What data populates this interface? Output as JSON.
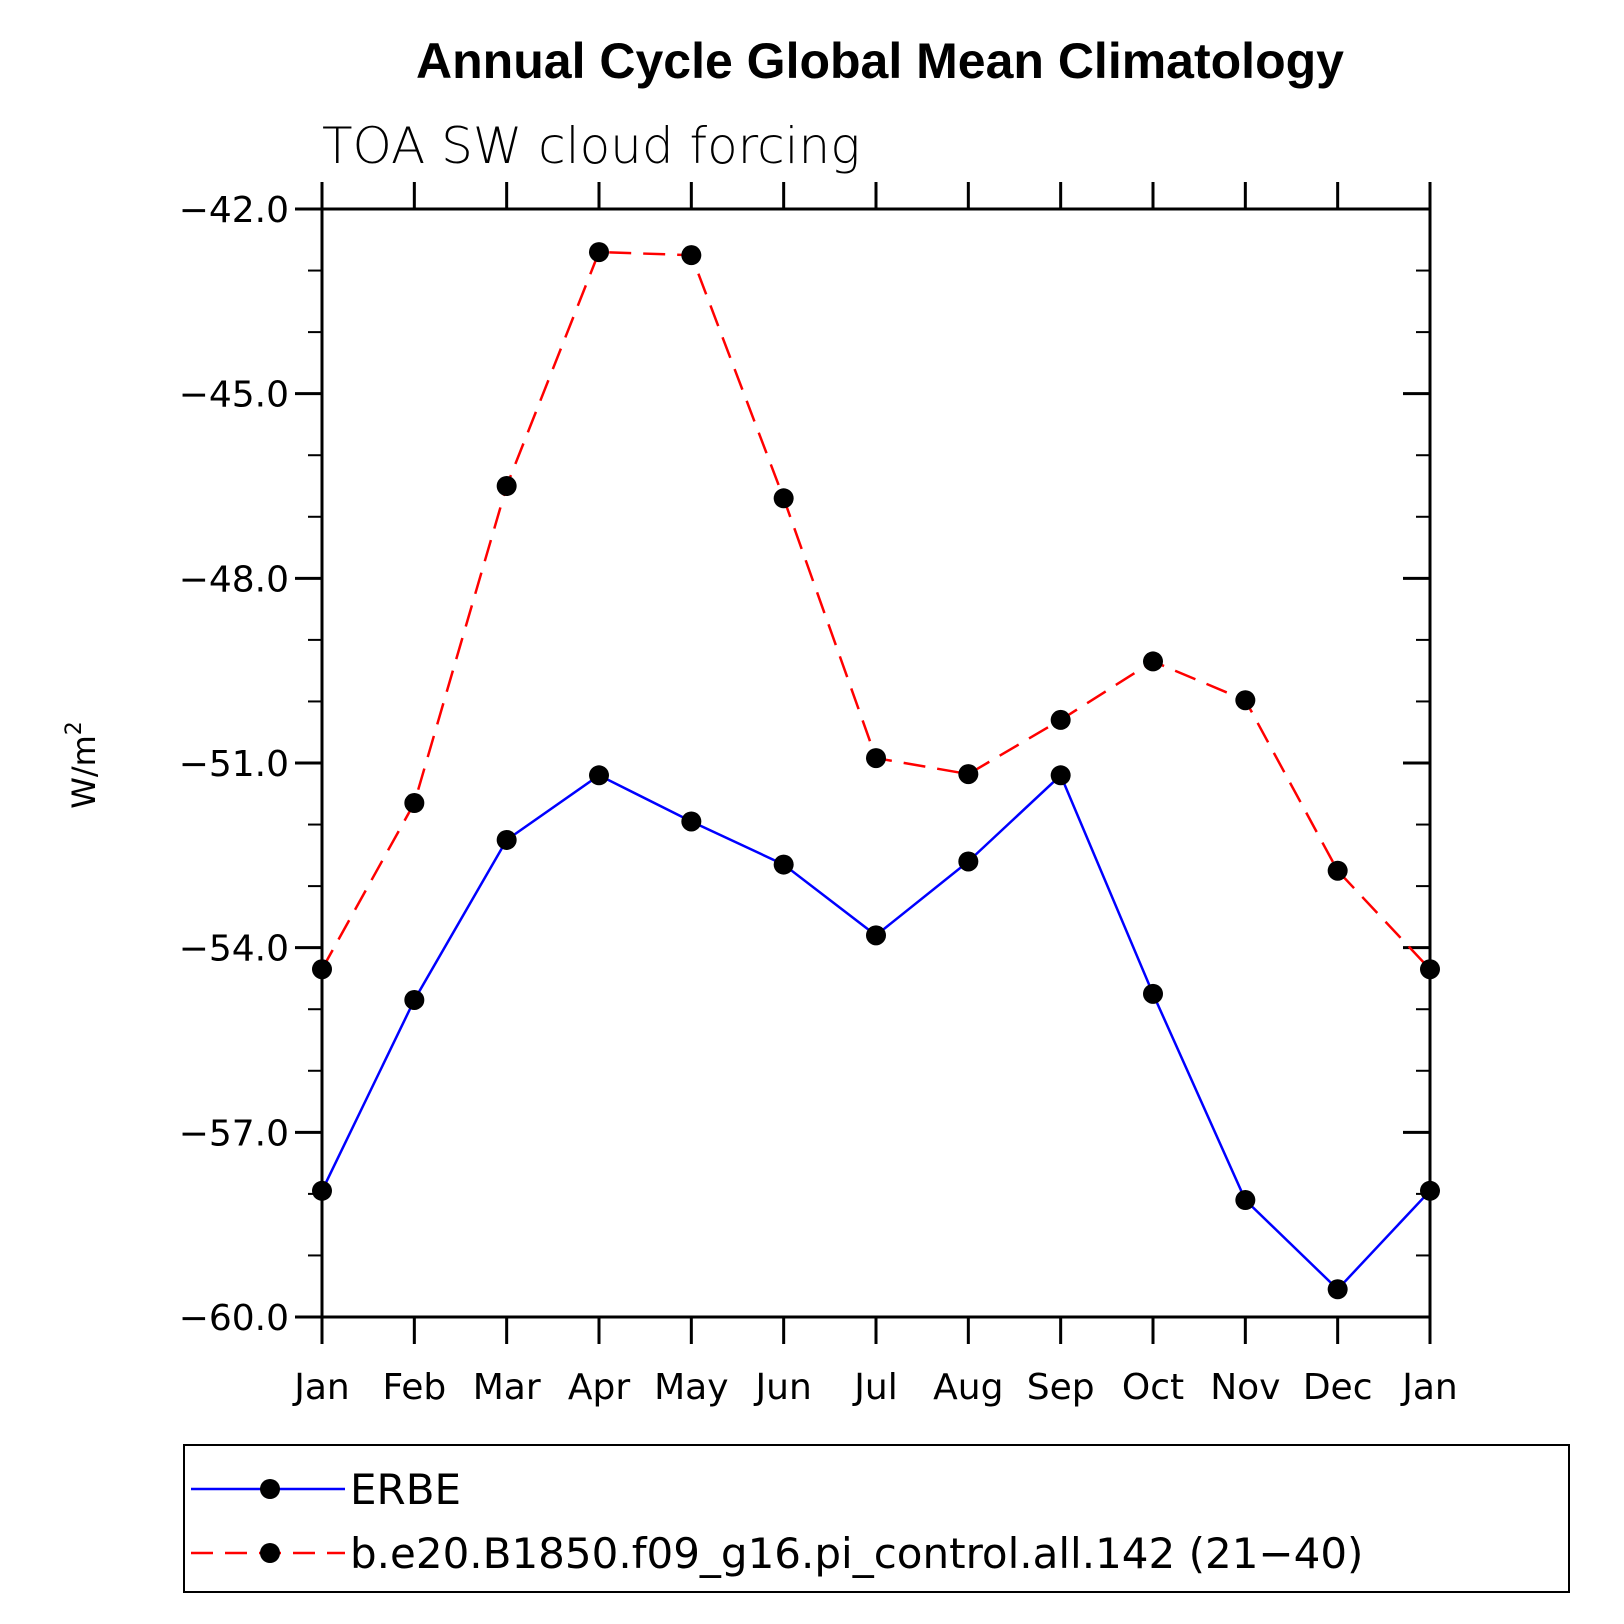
{
  "chart_data": {
    "type": "line",
    "title": "Annual Cycle Global Mean Climatology",
    "subtitle": "TOA SW cloud forcing",
    "xlabel": "",
    "ylabel": "W/m",
    "ylabel_superscript": "2",
    "categories": [
      "Jan",
      "Feb",
      "Mar",
      "Apr",
      "May",
      "Jun",
      "Jul",
      "Aug",
      "Sep",
      "Oct",
      "Nov",
      "Dec",
      "Jan"
    ],
    "ylim": [
      -60.0,
      -42.0
    ],
    "yticks": [
      -60.0,
      -57.0,
      -54.0,
      -51.0,
      -48.0,
      -45.0,
      -42.0
    ],
    "ytick_labels": [
      "−60.0",
      "−57.0",
      "−54.0",
      "−51.0",
      "−48.0",
      "−45.0",
      "−42.0"
    ],
    "grid": false,
    "legend_position": "bottom",
    "series": [
      {
        "name": "ERBE",
        "color": "#0000ff",
        "dash": "solid",
        "values": [
          -57.95,
          -54.85,
          -52.25,
          -51.2,
          -51.95,
          -52.65,
          -53.8,
          -52.6,
          -51.2,
          -54.75,
          -58.1,
          -59.55,
          -57.95
        ]
      },
      {
        "name": "b.e20.B1850.f09_g16.pi_control.all.142 (21−40)",
        "color": "#ff0000",
        "dash": "dashed",
        "values": [
          -54.35,
          -51.65,
          -46.5,
          -42.7,
          -42.75,
          -46.7,
          -50.92,
          -51.18,
          -50.3,
          -49.35,
          -49.98,
          -52.75,
          -54.35
        ]
      }
    ]
  }
}
